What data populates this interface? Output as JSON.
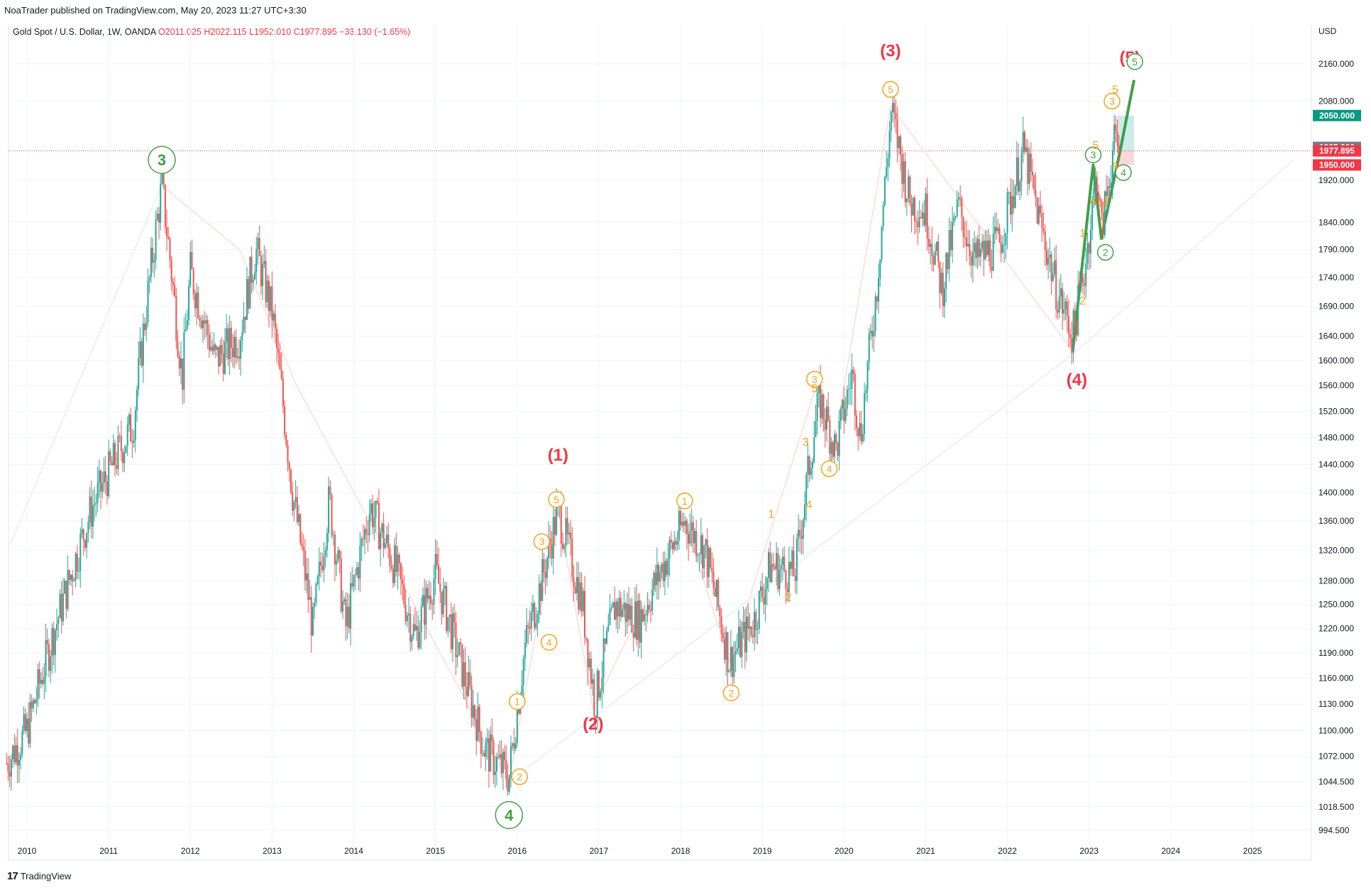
{
  "header": {
    "published": "NoaTrader published on TradingView.com, May 20, 2023 11:27 UTC+3:30"
  },
  "legend": {
    "symbol": "Gold Spot / U.S. Dollar, 1W, OANDA",
    "ohlc": "O2011.025  H2022.115  L1952.010  C1977.895  −33.130 (−1.65%)"
  },
  "brand": {
    "logo": "17",
    "name": "TradingView"
  },
  "chart_data": {
    "type": "candlestick",
    "currency": "USD",
    "x_ticks": [
      "2010",
      "2011",
      "2012",
      "2013",
      "2014",
      "2015",
      "2016",
      "2017",
      "2018",
      "2019",
      "2020",
      "2021",
      "2022",
      "2023",
      "2024",
      "2025"
    ],
    "y_ticks": [
      994.5,
      1018.5,
      1044.5,
      1072,
      1100,
      1130,
      1160,
      1190,
      1220,
      1250,
      1280,
      1320,
      1360,
      1400,
      1440,
      1480,
      1520,
      1560,
      1600,
      1640,
      1690,
      1740,
      1790,
      1840,
      1920,
      2080,
      2160
    ],
    "y_tick_labels": [
      "994.500",
      "1018.500",
      "1044.500",
      "1072.000",
      "1100.000",
      "1130.000",
      "1160.000",
      "1190.000",
      "1220.000",
      "1250.000",
      "1280.000",
      "1320.000",
      "1360.000",
      "1400.000",
      "1440.000",
      "1480.000",
      "1520.000",
      "1560.000",
      "1600.000",
      "1640.000",
      "1690.000",
      "1740.000",
      "1790.000",
      "1840.000",
      "1920.000",
      "2080.000",
      "2160.000"
    ],
    "price_tags": [
      {
        "value": 2050,
        "label": "2050.000",
        "color": "#089981"
      },
      {
        "value": 1985,
        "label": "1985.000",
        "color": "#787b86"
      },
      {
        "value": 1977.895,
        "label": "1977.895",
        "color": "#f23645"
      },
      {
        "value": 1950,
        "label": "1950.000",
        "color": "#f23645"
      }
    ],
    "last_price": 1977.895,
    "colors": {
      "up": "#26a69a",
      "down": "#ef5350",
      "major_wave": "#f23645",
      "minor_wave": "#f7a21b",
      "green_wave": "#43a047"
    },
    "price_path": [
      [
        2009.75,
        1065
      ],
      [
        2010.0,
        1100
      ],
      [
        2010.4,
        1240
      ],
      [
        2010.8,
        1380
      ],
      [
        2011.3,
        1500
      ],
      [
        2011.65,
        1910
      ],
      [
        2011.9,
        1570
      ],
      [
        2012.0,
        1750
      ],
      [
        2012.3,
        1600
      ],
      [
        2012.6,
        1640
      ],
      [
        2012.8,
        1790
      ],
      [
        2013.0,
        1680
      ],
      [
        2013.25,
        1400
      ],
      [
        2013.5,
        1220
      ],
      [
        2013.7,
        1390
      ],
      [
        2013.9,
        1220
      ],
      [
        2014.2,
        1380
      ],
      [
        2014.5,
        1300
      ],
      [
        2014.75,
        1210
      ],
      [
        2015.0,
        1290
      ],
      [
        2015.3,
        1180
      ],
      [
        2015.6,
        1080
      ],
      [
        2015.9,
        1050
      ],
      [
        2016.1,
        1200
      ],
      [
        2016.3,
        1280
      ],
      [
        2016.5,
        1375
      ],
      [
        2016.8,
        1250
      ],
      [
        2016.95,
        1130
      ],
      [
        2017.2,
        1250
      ],
      [
        2017.5,
        1230
      ],
      [
        2017.7,
        1280
      ],
      [
        2018.05,
        1360
      ],
      [
        2018.3,
        1320
      ],
      [
        2018.6,
        1180
      ],
      [
        2018.9,
        1230
      ],
      [
        2019.1,
        1300
      ],
      [
        2019.4,
        1290
      ],
      [
        2019.6,
        1460
      ],
      [
        2019.7,
        1540
      ],
      [
        2019.9,
        1460
      ],
      [
        2020.1,
        1580
      ],
      [
        2020.2,
        1480
      ],
      [
        2020.4,
        1720
      ],
      [
        2020.58,
        2060
      ],
      [
        2020.8,
        1880
      ],
      [
        2021.0,
        1860
      ],
      [
        2021.2,
        1720
      ],
      [
        2021.4,
        1870
      ],
      [
        2021.6,
        1770
      ],
      [
        2021.9,
        1800
      ],
      [
        2022.2,
        1980
      ],
      [
        2022.4,
        1840
      ],
      [
        2022.6,
        1720
      ],
      [
        2022.8,
        1640
      ],
      [
        2022.95,
        1760
      ],
      [
        2023.1,
        1940
      ],
      [
        2023.15,
        1820
      ],
      [
        2023.3,
        1990
      ],
      [
        2023.38,
        1977.9
      ]
    ],
    "annotations": [
      {
        "text": "(1)",
        "x": 2016.5,
        "y": 1455,
        "style": "major"
      },
      {
        "text": "(2)",
        "x": 2016.93,
        "y": 1108,
        "style": "major"
      },
      {
        "text": "(3)",
        "x": 2020.57,
        "y": 2190,
        "style": "major"
      },
      {
        "text": "(4)",
        "x": 2022.85,
        "y": 1570,
        "style": "major"
      },
      {
        "text": "(5)",
        "x": 2023.5,
        "y": 2175,
        "style": "major"
      },
      {
        "text": "3",
        "x": 2011.65,
        "y": 1960,
        "style": "green-circle"
      },
      {
        "text": "4",
        "x": 2015.9,
        "y": 1010,
        "style": "green-circle"
      },
      {
        "text": "3",
        "x": 2023.05,
        "y": 1970,
        "style": "green-circle-small"
      },
      {
        "text": "2",
        "x": 2023.2,
        "y": 1785,
        "style": "green-circle-small"
      },
      {
        "text": "4",
        "x": 2023.42,
        "y": 1935,
        "style": "green-circle-small"
      },
      {
        "text": "5",
        "x": 2023.56,
        "y": 2165,
        "style": "green-circle-small"
      },
      {
        "text": "5",
        "x": 2016.48,
        "y": 1390,
        "style": "orange-circle"
      },
      {
        "text": "3",
        "x": 2016.3,
        "y": 1332,
        "style": "orange-circle"
      },
      {
        "text": "4",
        "x": 2016.39,
        "y": 1203,
        "style": "orange-circle"
      },
      {
        "text": "1",
        "x": 2016.0,
        "y": 1133,
        "style": "orange-circle"
      },
      {
        "text": "2",
        "x": 2016.03,
        "y": 1050,
        "style": "orange-circle"
      },
      {
        "text": "1",
        "x": 2018.05,
        "y": 1388,
        "style": "orange-circle"
      },
      {
        "text": "2",
        "x": 2018.62,
        "y": 1143,
        "style": "orange-circle"
      },
      {
        "text": "3",
        "x": 2019.64,
        "y": 1570,
        "style": "orange-circle"
      },
      {
        "text": "4",
        "x": 2019.82,
        "y": 1434,
        "style": "orange-circle"
      },
      {
        "text": "5",
        "x": 2020.57,
        "y": 2105,
        "style": "orange-circle"
      },
      {
        "text": "1",
        "x": 2019.11,
        "y": 1370,
        "style": "orange"
      },
      {
        "text": "2",
        "x": 2019.32,
        "y": 1260,
        "style": "orange"
      },
      {
        "text": "3",
        "x": 2019.53,
        "y": 1474,
        "style": "orange"
      },
      {
        "text": "4",
        "x": 2019.57,
        "y": 1383,
        "style": "orange"
      },
      {
        "text": "5",
        "x": 2019.64,
        "y": 1556,
        "style": "orange"
      },
      {
        "text": "1",
        "x": 2022.92,
        "y": 1820,
        "style": "orange"
      },
      {
        "text": "2",
        "x": 2022.92,
        "y": 1700,
        "style": "orange"
      },
      {
        "text": "5",
        "x": 2023.32,
        "y": 2105,
        "style": "orange"
      },
      {
        "text": "3",
        "x": 2023.28,
        "y": 2080,
        "style": "orange-circle"
      },
      {
        "text": "1",
        "x": 2023.2,
        "y": 1880,
        "style": "orange"
      },
      {
        "text": "4",
        "x": 2023.32,
        "y": 1950,
        "style": "orange"
      },
      {
        "text": "4",
        "x": 2023.05,
        "y": 1880,
        "style": "orange"
      },
      {
        "text": "5",
        "x": 2023.08,
        "y": 1990,
        "style": "orange"
      }
    ],
    "wave_lines": [
      {
        "name": "minor-wave-path",
        "color": "#fbe3e3",
        "points": [
          [
            2011.65,
            1910
          ],
          [
            2012.6,
            1790
          ],
          [
            2013.3,
            1560
          ],
          [
            2015.9,
            1045
          ],
          [
            2016.5,
            1375
          ],
          [
            2016.93,
            1125
          ],
          [
            2018.05,
            1360
          ],
          [
            2018.6,
            1180
          ],
          [
            2019.65,
            1555
          ],
          [
            2019.85,
            1445
          ],
          [
            2020.57,
            2070
          ],
          [
            2022.8,
            1615
          ],
          [
            2023.05,
            1960
          ]
        ]
      },
      {
        "name": "channel-line-upper",
        "color": "#f0f0f0",
        "points": [
          [
            2015.9,
            1045
          ],
          [
            2022.8,
            1610
          ],
          [
            2025.5,
            1960
          ]
        ]
      },
      {
        "name": "channel-line-lower",
        "color": "#f0f0f0",
        "points": [
          [
            2009.8,
            1330
          ],
          [
            2011.65,
            1910
          ]
        ]
      },
      {
        "name": "green-projection",
        "color": "#43a047",
        "points": [
          [
            2022.8,
            1615
          ],
          [
            2023.05,
            1950
          ],
          [
            2023.15,
            1810
          ],
          [
            2023.38,
            1978
          ],
          [
            2023.55,
            2125
          ]
        ]
      }
    ],
    "position_box": {
      "x_start": 2023.35,
      "x_end": 2023.55,
      "entry": 1977.9,
      "target": 2050,
      "stop": 1950
    }
  }
}
